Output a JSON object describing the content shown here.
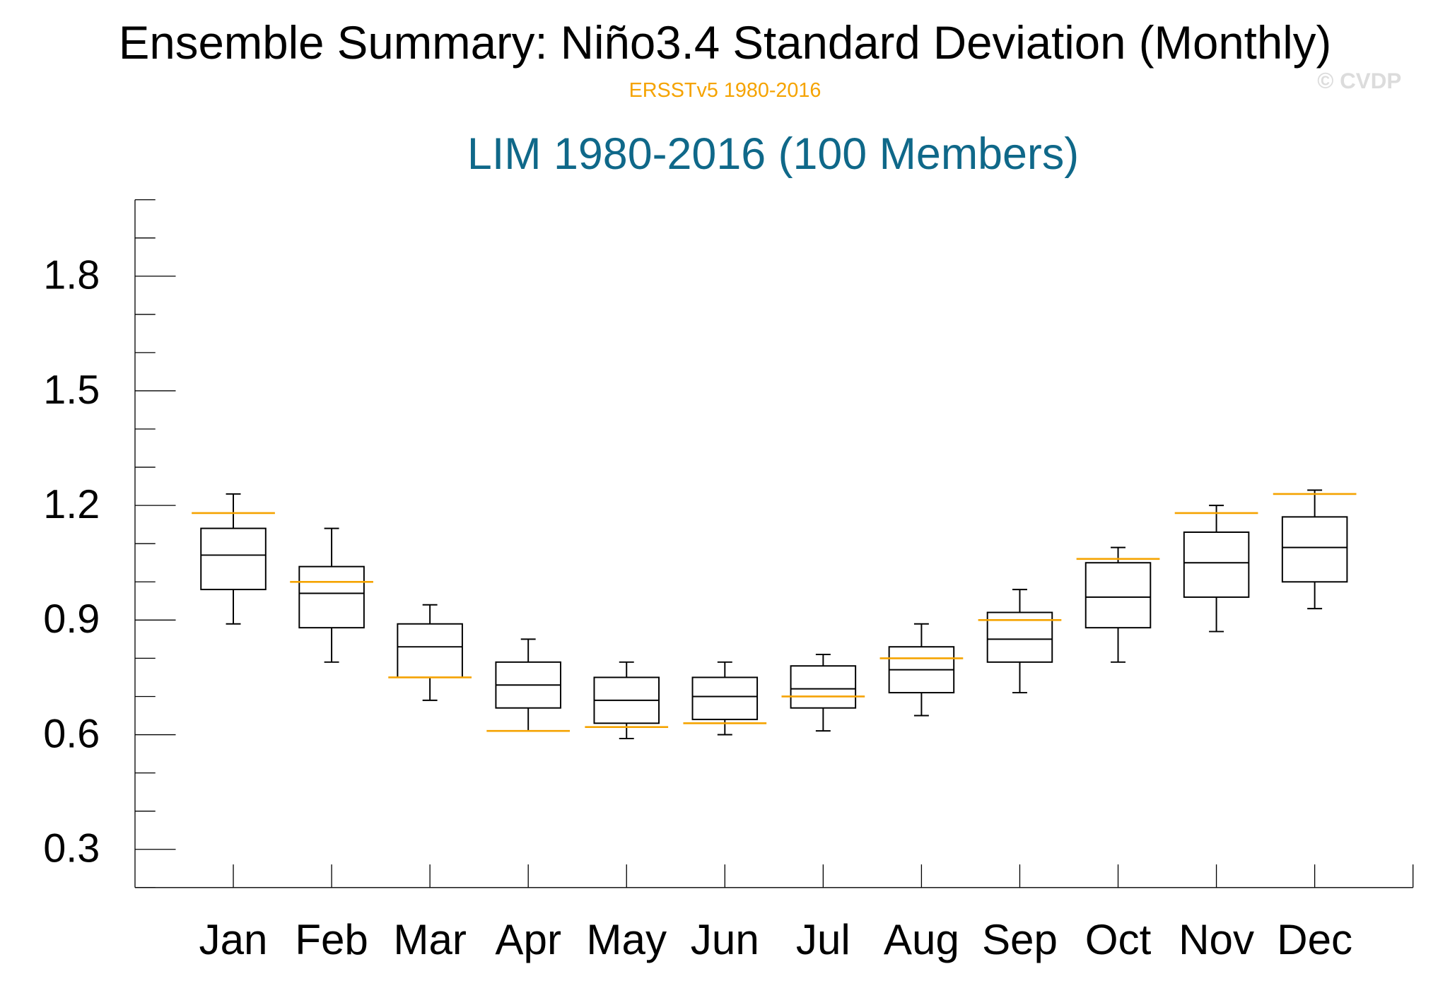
{
  "chart_data": {
    "type": "box",
    "title": "Ensemble Summary: Niño3.4 Standard Deviation (Monthly)",
    "watermark": "© CVDP",
    "categories": [
      "Jan",
      "Feb",
      "Mar",
      "Apr",
      "May",
      "Jun",
      "Jul",
      "Aug",
      "Sep",
      "Oct",
      "Nov",
      "Dec"
    ],
    "series": [
      {
        "name": "LIM 1980-2016 (100 Members)",
        "color": "#000000",
        "min": [
          0.89,
          0.79,
          0.69,
          0.61,
          0.59,
          0.6,
          0.61,
          0.65,
          0.71,
          0.79,
          0.87,
          0.93
        ],
        "q1": [
          0.98,
          0.88,
          0.75,
          0.67,
          0.63,
          0.64,
          0.67,
          0.71,
          0.79,
          0.88,
          0.96,
          1.0
        ],
        "median": [
          1.07,
          0.97,
          0.83,
          0.73,
          0.69,
          0.7,
          0.72,
          0.77,
          0.85,
          0.96,
          1.05,
          1.09
        ],
        "q3": [
          1.14,
          1.04,
          0.89,
          0.79,
          0.75,
          0.75,
          0.78,
          0.83,
          0.92,
          1.05,
          1.13,
          1.17
        ],
        "max": [
          1.23,
          1.14,
          0.94,
          0.85,
          0.79,
          0.79,
          0.81,
          0.89,
          0.98,
          1.09,
          1.2,
          1.24
        ]
      },
      {
        "name": "ERSSTv5 1980-2016",
        "color": "#f5a300",
        "values": [
          1.18,
          1.0,
          0.75,
          0.61,
          0.62,
          0.63,
          0.7,
          0.8,
          0.9,
          1.06,
          1.18,
          1.23
        ]
      }
    ],
    "title_color": "#0f6889",
    "ylim": [
      0.2,
      2.0
    ],
    "yticks": [
      0.3,
      0.6,
      0.9,
      1.2,
      1.5,
      1.8
    ],
    "yminorticks": [
      0.2,
      0.4,
      0.5,
      0.7,
      0.8,
      1.0,
      1.1,
      1.3,
      1.4,
      1.6,
      1.7,
      1.9,
      2.0
    ]
  }
}
